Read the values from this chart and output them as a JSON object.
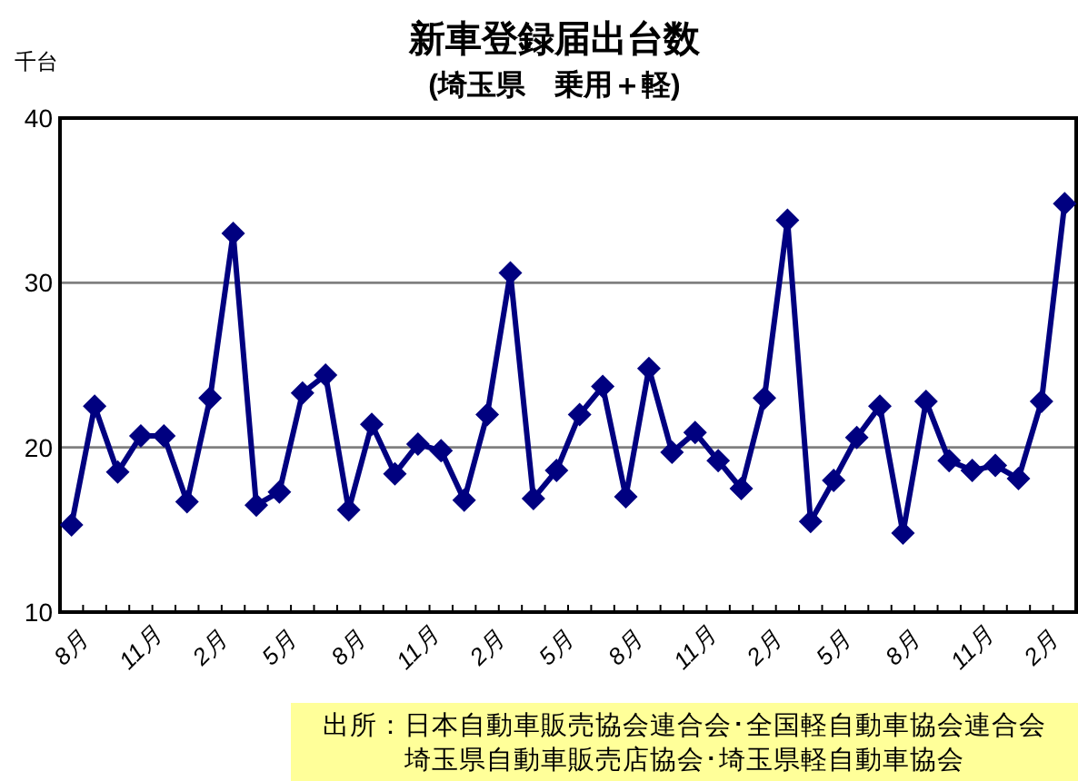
{
  "chart_data": {
    "type": "line",
    "title": "新車登録届出台数",
    "subtitle": "(埼玉県　乗用＋軽)",
    "ylabel": "千台",
    "categories": [
      "8月",
      null,
      null,
      "11月",
      null,
      null,
      "2月",
      null,
      null,
      "5月",
      null,
      null,
      "8月",
      null,
      null,
      "11月",
      null,
      null,
      "2月",
      null,
      null,
      "5月",
      null,
      null,
      "8月",
      null,
      null,
      "11月",
      null,
      null,
      "2月",
      null,
      null,
      "5月",
      null,
      null,
      "8月",
      null,
      null,
      "11月",
      null,
      null,
      "2月",
      null
    ],
    "series": [
      {
        "color": "#000080",
        "values": [
          15.3,
          22.5,
          18.5,
          20.7,
          20.7,
          16.7,
          23.0,
          33.0,
          16.5,
          17.3,
          23.3,
          24.4,
          16.2,
          21.4,
          18.4,
          20.2,
          19.8,
          16.8,
          22.0,
          30.6,
          16.9,
          18.6,
          22.0,
          23.7,
          17.0,
          24.8,
          19.7,
          20.9,
          19.2,
          17.5,
          23.0,
          33.8,
          15.5,
          18.0,
          20.6,
          22.5,
          14.8,
          22.8,
          19.2,
          18.6,
          18.9,
          18.1,
          22.8,
          34.8
        ]
      }
    ],
    "ylim": [
      10,
      40
    ],
    "yticks": [
      10,
      20,
      30,
      40
    ],
    "grid": "y",
    "marker": "diamond",
    "line_style": "solid",
    "annotations": [
      "出所：日本自動車販売協会連合会･全国軽自動車協会連合会",
      "埼玉県自動車販売店協会･埼玉県軽自動車協会"
    ]
  }
}
